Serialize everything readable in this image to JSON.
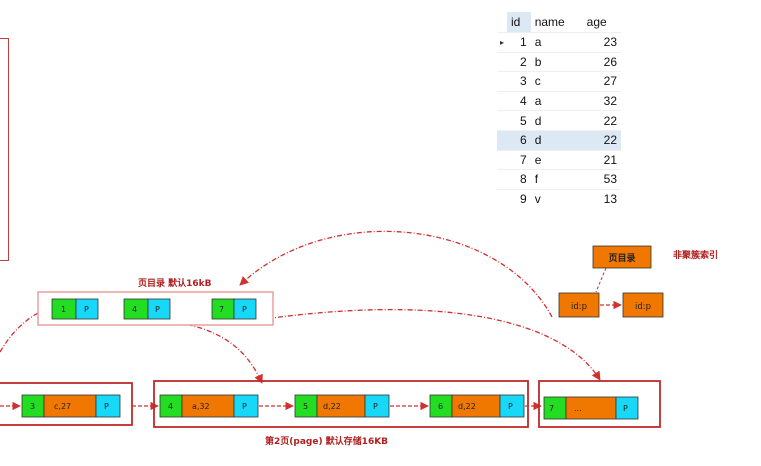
{
  "table": {
    "columns": [
      "id",
      "name",
      "age"
    ],
    "rows": [
      {
        "id": "1",
        "name": "a",
        "age": "23"
      },
      {
        "id": "2",
        "name": "b",
        "age": "26"
      },
      {
        "id": "3",
        "name": "c",
        "age": "27"
      },
      {
        "id": "4",
        "name": "a",
        "age": "32"
      },
      {
        "id": "5",
        "name": "d",
        "age": "22"
      },
      {
        "id": "6",
        "name": "d",
        "age": "22"
      },
      {
        "id": "7",
        "name": "e",
        "age": "21"
      },
      {
        "id": "8",
        "name": "f",
        "age": "53"
      },
      {
        "id": "9",
        "name": "v",
        "age": "13"
      }
    ],
    "current_row_marker": "▸"
  },
  "directory": {
    "caption": "页目录 默认16kB",
    "entries": [
      {
        "key": "1",
        "ptr": "P"
      },
      {
        "key": "4",
        "ptr": "P"
      },
      {
        "key": "7",
        "ptr": "P"
      }
    ]
  },
  "secondary": {
    "box_label": "页目录",
    "caption": "非聚簇索引",
    "entry1": "id:p",
    "entry2": "id:p"
  },
  "pages": {
    "page1": {
      "key": "3",
      "data": "c,27",
      "ptr": "P"
    },
    "page2": [
      {
        "key": "4",
        "data": "a,32",
        "ptr": "P"
      },
      {
        "key": "5",
        "data": "d,22",
        "ptr": "P"
      },
      {
        "key": "6",
        "data": "d,22",
        "ptr": "P"
      }
    ],
    "page2_caption": "第2页(page) 默认存储16KB",
    "page3": {
      "key": "7",
      "data": "...",
      "ptr": "P"
    }
  },
  "colors": {
    "green": "#22dd22",
    "orange": "#f07800",
    "cyan": "#18d8f8",
    "frame_red": "#c02828",
    "arrow_red": "#d03030",
    "left_border": "#c04040"
  }
}
